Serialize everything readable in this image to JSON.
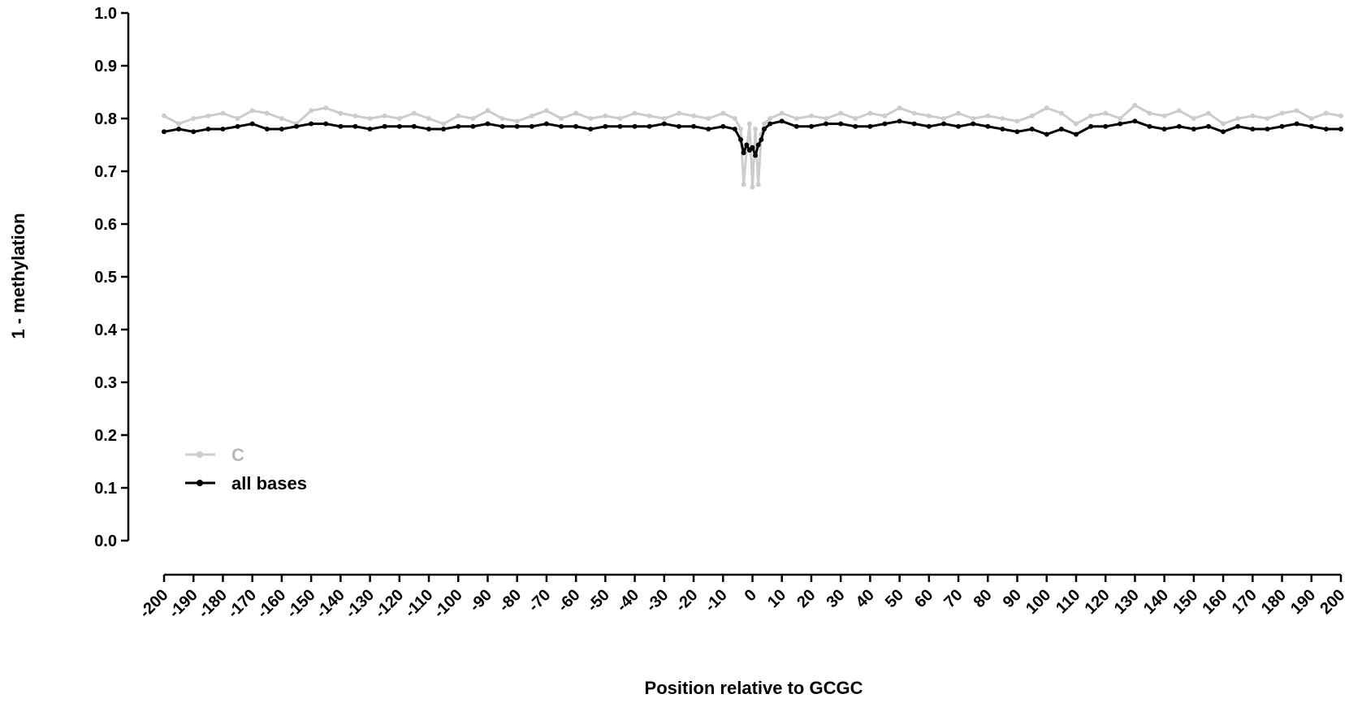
{
  "chart_data": {
    "type": "line",
    "title": "",
    "xlabel": "Position relative to GCGC",
    "ylabel": "1 - methylation",
    "xlim": [
      -200,
      200
    ],
    "ylim": [
      0.0,
      1.0
    ],
    "x_ticks": [
      "-200",
      "-190",
      "-180",
      "-170",
      "-160",
      "-150",
      "-140",
      "-130",
      "-120",
      "-110",
      "-100",
      "-90",
      "-80",
      "-70",
      "-60",
      "-50",
      "-40",
      "-30",
      "-20",
      "-10",
      "0",
      "10",
      "20",
      "30",
      "40",
      "50",
      "60",
      "70",
      "80",
      "90",
      "100",
      "110",
      "120",
      "130",
      "140",
      "150",
      "160",
      "170",
      "180",
      "190",
      "200"
    ],
    "y_ticks": [
      "0.0",
      "0.1",
      "0.2",
      "0.3",
      "0.4",
      "0.5",
      "0.6",
      "0.7",
      "0.8",
      "0.9",
      "1.0"
    ],
    "grid": false,
    "legend_position": "bottom-left",
    "series": [
      {
        "name": "C",
        "color": "#cccccc",
        "x": [
          -200,
          -195,
          -190,
          -185,
          -180,
          -175,
          -170,
          -165,
          -160,
          -155,
          -150,
          -145,
          -140,
          -135,
          -130,
          -125,
          -120,
          -115,
          -110,
          -105,
          -100,
          -95,
          -90,
          -85,
          -80,
          -75,
          -70,
          -65,
          -60,
          -55,
          -50,
          -45,
          -40,
          -35,
          -30,
          -25,
          -20,
          -15,
          -10,
          -6,
          -4,
          -3,
          -2,
          -1,
          0,
          1,
          2,
          3,
          4,
          6,
          10,
          15,
          20,
          25,
          30,
          35,
          40,
          45,
          50,
          55,
          60,
          65,
          70,
          75,
          80,
          85,
          90,
          95,
          100,
          105,
          110,
          115,
          120,
          125,
          130,
          135,
          140,
          145,
          150,
          155,
          160,
          165,
          170,
          175,
          180,
          185,
          190,
          195,
          200
        ],
        "values": [
          0.805,
          0.79,
          0.8,
          0.805,
          0.81,
          0.8,
          0.815,
          0.81,
          0.8,
          0.79,
          0.815,
          0.82,
          0.81,
          0.805,
          0.8,
          0.805,
          0.8,
          0.81,
          0.8,
          0.79,
          0.805,
          0.8,
          0.815,
          0.8,
          0.795,
          0.805,
          0.815,
          0.8,
          0.81,
          0.8,
          0.805,
          0.8,
          0.81,
          0.805,
          0.8,
          0.81,
          0.805,
          0.8,
          0.81,
          0.8,
          0.78,
          0.675,
          0.74,
          0.79,
          0.67,
          0.78,
          0.675,
          0.77,
          0.79,
          0.8,
          0.81,
          0.8,
          0.805,
          0.8,
          0.81,
          0.8,
          0.81,
          0.805,
          0.82,
          0.81,
          0.805,
          0.8,
          0.81,
          0.8,
          0.805,
          0.8,
          0.795,
          0.805,
          0.82,
          0.81,
          0.79,
          0.805,
          0.81,
          0.8,
          0.825,
          0.81,
          0.805,
          0.815,
          0.8,
          0.81,
          0.79,
          0.8,
          0.805,
          0.8,
          0.81,
          0.815,
          0.8,
          0.81,
          0.805
        ]
      },
      {
        "name": "all bases",
        "color": "#000000",
        "x": [
          -200,
          -195,
          -190,
          -185,
          -180,
          -175,
          -170,
          -165,
          -160,
          -155,
          -150,
          -145,
          -140,
          -135,
          -130,
          -125,
          -120,
          -115,
          -110,
          -105,
          -100,
          -95,
          -90,
          -85,
          -80,
          -75,
          -70,
          -65,
          -60,
          -55,
          -50,
          -45,
          -40,
          -35,
          -30,
          -25,
          -20,
          -15,
          -10,
          -6,
          -4,
          -3,
          -2,
          -1,
          0,
          1,
          2,
          3,
          4,
          6,
          10,
          15,
          20,
          25,
          30,
          35,
          40,
          45,
          50,
          55,
          60,
          65,
          70,
          75,
          80,
          85,
          90,
          95,
          100,
          105,
          110,
          115,
          120,
          125,
          130,
          135,
          140,
          145,
          150,
          155,
          160,
          165,
          170,
          175,
          180,
          185,
          190,
          195,
          200
        ],
        "values": [
          0.775,
          0.78,
          0.775,
          0.78,
          0.78,
          0.785,
          0.79,
          0.78,
          0.78,
          0.785,
          0.79,
          0.79,
          0.785,
          0.785,
          0.78,
          0.785,
          0.785,
          0.785,
          0.78,
          0.78,
          0.785,
          0.785,
          0.79,
          0.785,
          0.785,
          0.785,
          0.79,
          0.785,
          0.785,
          0.78,
          0.785,
          0.785,
          0.785,
          0.785,
          0.79,
          0.785,
          0.785,
          0.78,
          0.785,
          0.78,
          0.76,
          0.735,
          0.75,
          0.74,
          0.745,
          0.73,
          0.75,
          0.76,
          0.78,
          0.79,
          0.795,
          0.785,
          0.785,
          0.79,
          0.79,
          0.785,
          0.785,
          0.79,
          0.795,
          0.79,
          0.785,
          0.79,
          0.785,
          0.79,
          0.785,
          0.78,
          0.775,
          0.78,
          0.77,
          0.78,
          0.77,
          0.785,
          0.785,
          0.79,
          0.795,
          0.785,
          0.78,
          0.785,
          0.78,
          0.785,
          0.775,
          0.785,
          0.78,
          0.78,
          0.785,
          0.79,
          0.785,
          0.78,
          0.78
        ]
      }
    ]
  }
}
